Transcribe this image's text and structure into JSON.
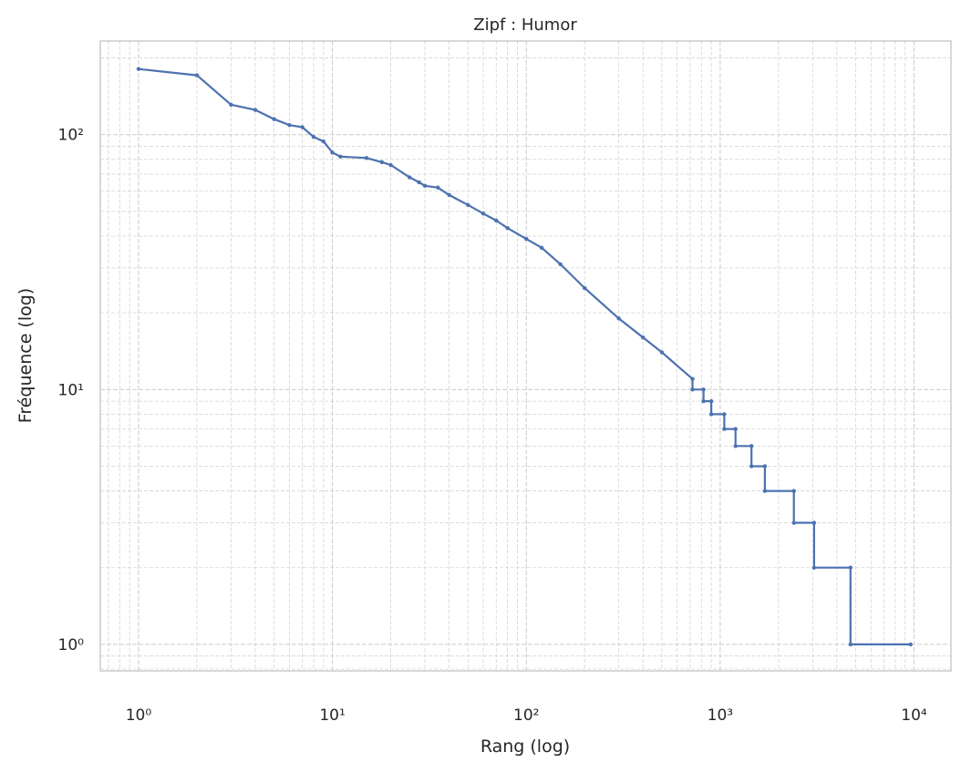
{
  "chart_data": {
    "type": "line",
    "title": "Zipf : Humor",
    "x_label": "Rang (log)",
    "y_label": "Fréquence (log)",
    "x_scale": "log",
    "y_scale": "log",
    "grid": true,
    "minor_grid": true,
    "xlim": [
      0.635,
      15500
    ],
    "ylim": [
      0.787,
      233
    ],
    "xticks": [
      {
        "value": 1,
        "label": "10⁰"
      },
      {
        "value": 10,
        "label": "10¹"
      },
      {
        "value": 100,
        "label": "10²"
      },
      {
        "value": 1000,
        "label": "10³"
      },
      {
        "value": 10000,
        "label": "10⁴"
      }
    ],
    "yticks": [
      {
        "value": 1,
        "label": "10⁰"
      },
      {
        "value": 10,
        "label": "10¹"
      },
      {
        "value": 100,
        "label": "10²"
      }
    ],
    "series": [
      {
        "name": "Humor",
        "color": "#4c72b0",
        "x": [
          1,
          2,
          3,
          4,
          5,
          6,
          7,
          8,
          9,
          10,
          11,
          15,
          18,
          20,
          25,
          28,
          30,
          35,
          40,
          50,
          60,
          70,
          80,
          100,
          120,
          150,
          200,
          300,
          400,
          500,
          720,
          720,
          820,
          820,
          900,
          900,
          1050,
          1050,
          1200,
          1200,
          1450,
          1450,
          1700,
          1700,
          2400,
          2400,
          3050,
          3050,
          4700,
          4700,
          9600
        ],
        "values": [
          181,
          171,
          131,
          125,
          115,
          109,
          107,
          98,
          94,
          85,
          82,
          81,
          78,
          76,
          68,
          65,
          63,
          62,
          58,
          53,
          49,
          46,
          43,
          39,
          36,
          31,
          25,
          19,
          16,
          14,
          11,
          10,
          10,
          9,
          9,
          8,
          8,
          7,
          7,
          6,
          6,
          5,
          5,
          4,
          4,
          3,
          3,
          2,
          2,
          1,
          1
        ]
      }
    ]
  }
}
